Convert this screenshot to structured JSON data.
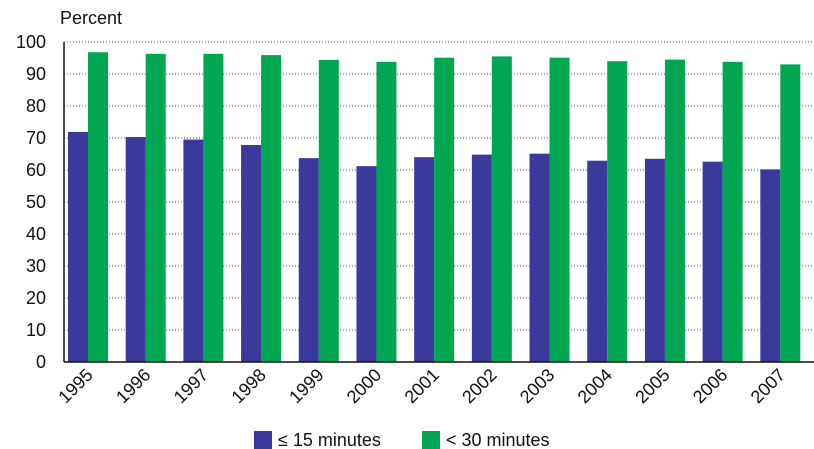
{
  "chart_data": {
    "type": "bar",
    "ylabel": "Percent",
    "xlabel": "",
    "ylim": [
      0,
      100
    ],
    "yticks": [
      0,
      10,
      20,
      30,
      40,
      50,
      60,
      70,
      80,
      90,
      100
    ],
    "grid": true,
    "legend_position": "bottom-center",
    "categories": [
      "1995",
      "1996",
      "1997",
      "1998",
      "1999",
      "2000",
      "2001",
      "2002",
      "2003",
      "2004",
      "2005",
      "2006",
      "2007"
    ],
    "series": [
      {
        "name": "≤ 15 minutes",
        "color": "#3a3a9c",
        "values": [
          71.9,
          70.3,
          69.5,
          67.8,
          63.7,
          61.2,
          64.0,
          64.8,
          65.1,
          62.9,
          63.5,
          62.6,
          60.2
        ]
      },
      {
        "name": "< 30 minutes",
        "color": "#00a651",
        "values": [
          96.8,
          96.3,
          96.3,
          95.9,
          94.4,
          93.8,
          95.1,
          95.5,
          95.1,
          94.0,
          94.5,
          93.8,
          93.0
        ]
      }
    ]
  }
}
